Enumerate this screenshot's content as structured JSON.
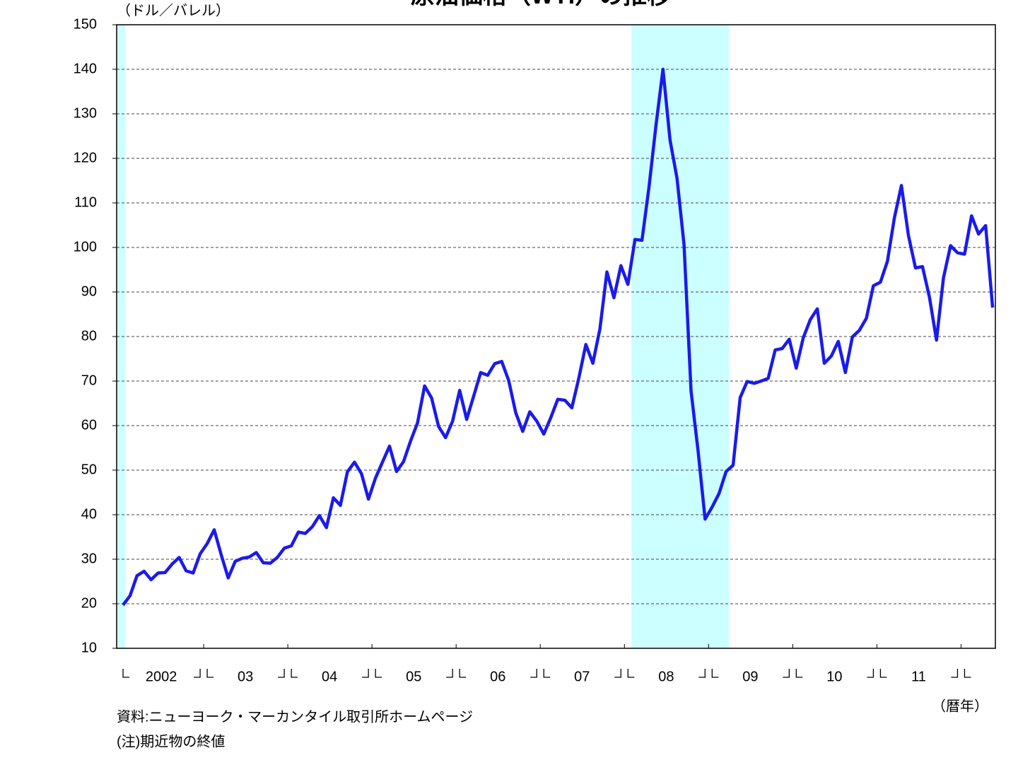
{
  "chart_data": {
    "type": "line",
    "title": "原油価格（WTI）の推移",
    "y_label": "（ドル／バレル）",
    "x_label": "（暦年）",
    "source": "資料:ニューヨーク・マーカンタイル取引所ホームページ",
    "note": "(注)期近物の終値",
    "ylim": [
      10,
      150
    ],
    "yticks": [
      10,
      20,
      30,
      40,
      50,
      60,
      70,
      80,
      90,
      100,
      110,
      120,
      130,
      140,
      150
    ],
    "grid": true,
    "shaded_periods": [
      [
        -0.9,
        0.3
      ],
      [
        72.5,
        86.4
      ]
    ],
    "shade_color": "#ccffff",
    "categories": [
      null,
      null,
      null,
      null,
      null,
      "2002",
      null,
      null,
      null,
      null,
      null,
      null,
      null,
      null,
      null,
      null,
      null,
      "03",
      null,
      null,
      null,
      null,
      null,
      null,
      null,
      null,
      null,
      null,
      null,
      "04",
      null,
      null,
      null,
      null,
      null,
      null,
      null,
      null,
      null,
      null,
      null,
      "05",
      null,
      null,
      null,
      null,
      null,
      null,
      null,
      null,
      null,
      null,
      null,
      "06",
      null,
      null,
      null,
      null,
      null,
      null,
      null,
      null,
      null,
      null,
      null,
      "07",
      null,
      null,
      null,
      null,
      null,
      null,
      null,
      null,
      null,
      null,
      null,
      "08",
      null,
      null,
      null,
      null,
      null,
      null,
      null,
      null,
      null,
      null,
      null,
      "09",
      null,
      null,
      null,
      null,
      null,
      null,
      null,
      null,
      null,
      null,
      null,
      "10",
      null,
      null,
      null,
      null,
      null,
      null,
      null,
      null,
      null,
      null,
      null,
      "11",
      null,
      null,
      null,
      null,
      null,
      null,
      null,
      null,
      null,
      null,
      null
    ],
    "series": [
      {
        "name": "WTI",
        "color": "#1a1aee",
        "values": [
          19.7,
          21.8,
          26.3,
          27.3,
          25.4,
          26.9,
          27.0,
          28.9,
          30.4,
          27.4,
          26.9,
          31.2,
          33.5,
          36.6,
          31.0,
          25.8,
          29.5,
          30.2,
          30.5,
          31.5,
          29.2,
          29.1,
          30.4,
          32.5,
          33.0,
          36.1,
          35.8,
          37.3,
          39.8,
          37.1,
          43.8,
          42.1,
          49.6,
          51.8,
          49.2,
          43.5,
          48.2,
          51.8,
          55.4,
          49.7,
          51.9,
          56.5,
          60.6,
          68.9,
          66.2,
          59.8,
          57.3,
          61.0,
          67.9,
          61.4,
          66.6,
          71.9,
          71.3,
          73.9,
          74.4,
          70.1,
          62.9,
          58.7,
          63.1,
          61.0,
          58.1,
          61.8,
          65.9,
          65.7,
          64.0,
          70.7,
          78.2,
          74.0,
          81.7,
          94.5,
          88.7,
          95.9,
          91.7,
          101.8,
          101.6,
          113.5,
          127.4,
          140.0,
          124.1,
          115.5,
          100.6,
          67.8,
          54.4,
          39.0,
          41.7,
          44.8,
          49.7,
          51.1,
          66.3,
          69.9,
          69.5,
          70.0,
          70.6,
          77.0,
          77.3,
          79.4,
          72.9,
          79.7,
          83.8,
          86.2,
          74.0,
          75.6,
          78.9,
          71.9,
          79.9,
          81.4,
          84.1,
          91.4,
          92.2,
          96.9,
          106.7,
          113.9,
          102.7,
          95.4,
          95.7,
          88.8,
          79.2,
          93.2,
          100.4,
          98.8,
          98.5,
          107.1,
          103.0,
          104.9,
          86.5
        ]
      }
    ]
  }
}
